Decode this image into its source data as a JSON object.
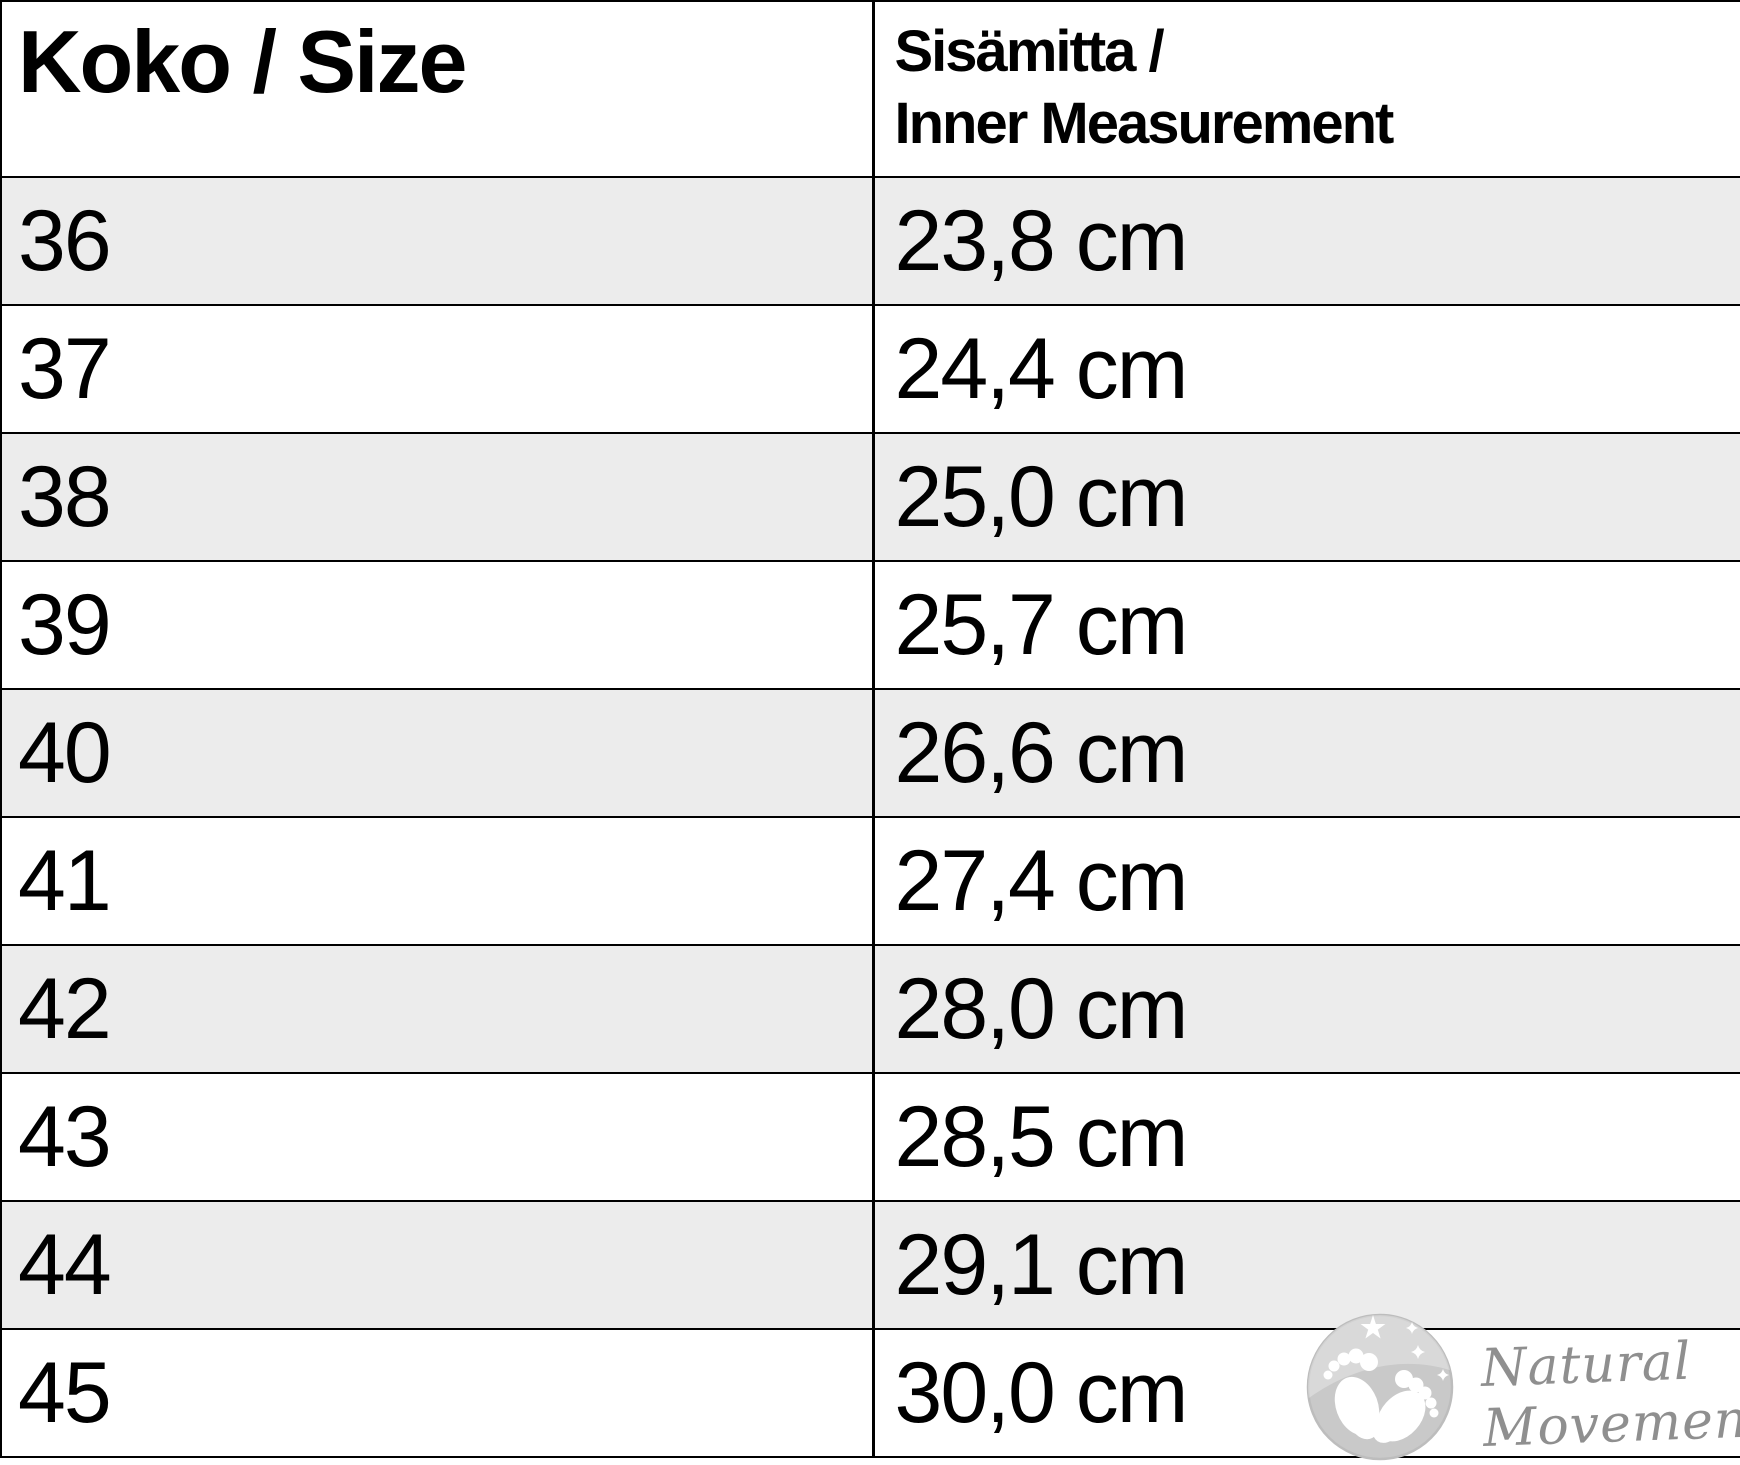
{
  "table": {
    "columns": [
      {
        "key": "size",
        "label": "Koko / Size"
      },
      {
        "key": "inner",
        "label_line1": "Sisämitta /",
        "label_line2": "Inner Measurement"
      }
    ],
    "rows": [
      {
        "size": "36",
        "inner": "23,8 cm"
      },
      {
        "size": "37",
        "inner": "24,4 cm"
      },
      {
        "size": "38",
        "inner": "25,0 cm"
      },
      {
        "size": "39",
        "inner": "25,7 cm"
      },
      {
        "size": "40",
        "inner": "26,6 cm"
      },
      {
        "size": "41",
        "inner": "27,4 cm"
      },
      {
        "size": "42",
        "inner": "28,0 cm"
      },
      {
        "size": "43",
        "inner": "28,5 cm"
      },
      {
        "size": "44",
        "inner": "29,1 cm"
      },
      {
        "size": "45",
        "inner": "30,0 cm"
      }
    ]
  },
  "watermark": {
    "line1": "Natural",
    "line2": "Movement",
    "icon": "baby-feet-icon"
  },
  "colors": {
    "row_stripe": "#ececec",
    "border": "#000000",
    "text": "#000000",
    "logo_circle": "#c9c9c9",
    "logo_text": "#8f8f8f"
  }
}
